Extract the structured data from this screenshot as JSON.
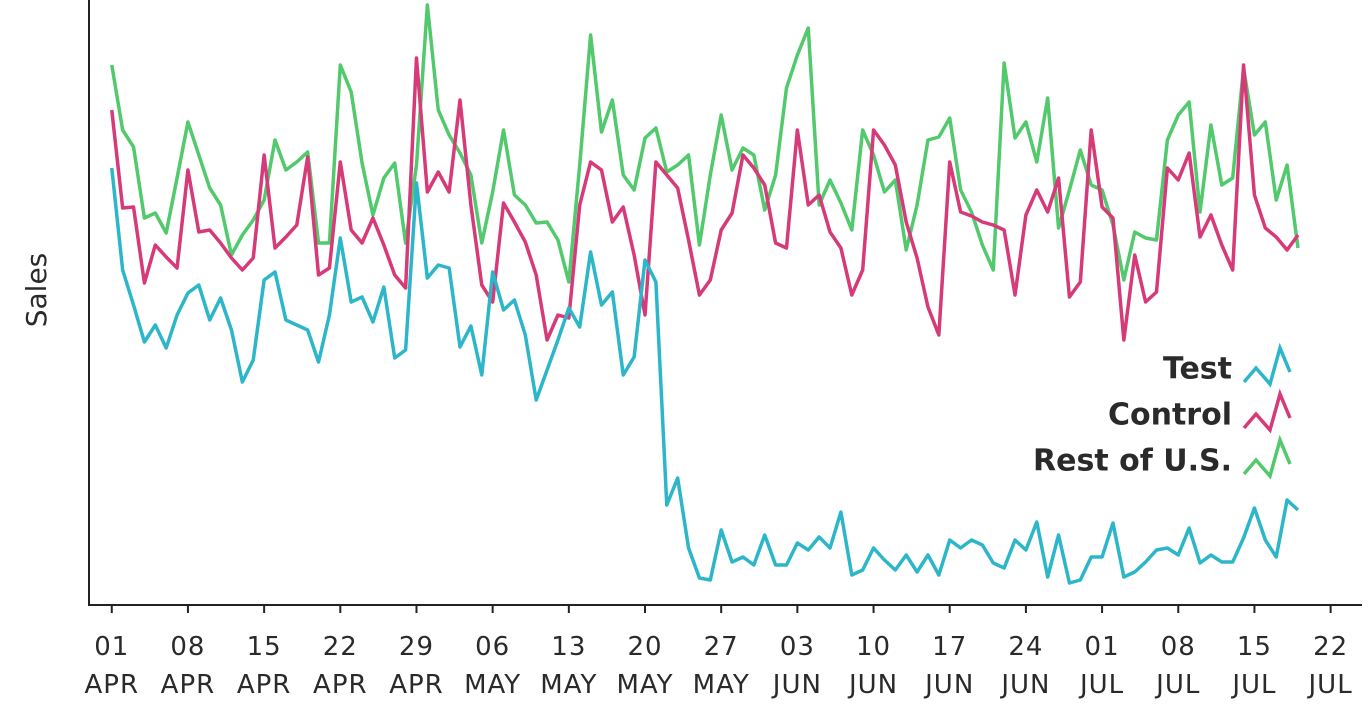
{
  "chart_data": {
    "type": "line",
    "ylabel": "Sales",
    "legend_position": "center right",
    "x": [
      0,
      1,
      2,
      3,
      4,
      5,
      6,
      7,
      8,
      9,
      10,
      11,
      12,
      13,
      14,
      15,
      16,
      17,
      18,
      19,
      20,
      21,
      22,
      23,
      24,
      25,
      26,
      27,
      28,
      29,
      30,
      31,
      32,
      33,
      34,
      35,
      36,
      37,
      38,
      39,
      40,
      41,
      42,
      43,
      44,
      45,
      46,
      47,
      48,
      49,
      50,
      51,
      52,
      53,
      54,
      55,
      56,
      57,
      58,
      59,
      60,
      61,
      62,
      63,
      64,
      65,
      66,
      67,
      68,
      69,
      70,
      71,
      72,
      73,
      74,
      75,
      76,
      77,
      78,
      79,
      80,
      81,
      82,
      83,
      84,
      85,
      86,
      87,
      88,
      89,
      90,
      91,
      92,
      93,
      94,
      95,
      96,
      97,
      98,
      99,
      100,
      101,
      102,
      103,
      104,
      105,
      106,
      107,
      108,
      109
    ],
    "xlim": [
      -2,
      114.7
    ],
    "xticks": [
      {
        "value": 0,
        "label": "01\nAPR"
      },
      {
        "value": 7,
        "label": "08\nAPR"
      },
      {
        "value": 14,
        "label": "15\nAPR"
      },
      {
        "value": 21,
        "label": "22\nAPR"
      },
      {
        "value": 28,
        "label": "29\nAPR"
      },
      {
        "value": 35,
        "label": "06\nMAY"
      },
      {
        "value": 42,
        "label": "13\nMAY"
      },
      {
        "value": 49,
        "label": "20\nMAY"
      },
      {
        "value": 56,
        "label": "27\nMAY"
      },
      {
        "value": 63,
        "label": "03\nJUN"
      },
      {
        "value": 70,
        "label": "10\nJUN"
      },
      {
        "value": 77,
        "label": "17\nJUN"
      },
      {
        "value": 84,
        "label": "24\nJUN"
      },
      {
        "value": 91,
        "label": "01\nJUL"
      },
      {
        "value": 98,
        "label": "08\nJUL"
      },
      {
        "value": 105,
        "label": "15\nJUL"
      },
      {
        "value": 112,
        "label": "22\nJUL"
      }
    ],
    "ylim": [
      0,
      600
    ],
    "series": [
      {
        "name": "Test",
        "color": "#2db6c9",
        "values": [
          437,
          335,
          300,
          263,
          280,
          257,
          290,
          312,
          320,
          285,
          307,
          275,
          223,
          245,
          325,
          333,
          285,
          280,
          275,
          243,
          290,
          367,
          303,
          308,
          283,
          318,
          247,
          255,
          422,
          327,
          340,
          337,
          258,
          279,
          230,
          333,
          295,
          305,
          270,
          205,
          235,
          265,
          297,
          278,
          353,
          300,
          313,
          230,
          248,
          345,
          323,
          100,
          127,
          57,
          27,
          25,
          75,
          43,
          48,
          40,
          70,
          40,
          40,
          62,
          55,
          68,
          57,
          93,
          30,
          35,
          57,
          45,
          35,
          50,
          33,
          50,
          30,
          65,
          57,
          65,
          60,
          42,
          37,
          65,
          55,
          83,
          28,
          70,
          22,
          25,
          48,
          48,
          82,
          28,
          33,
          43,
          55,
          57,
          50,
          77,
          42,
          50,
          43,
          43,
          67,
          97,
          65,
          48,
          105,
          95
        ]
      },
      {
        "name": "Control",
        "color": "#d63a78",
        "values": [
          495,
          397,
          398,
          322,
          360,
          348,
          337,
          435,
          373,
          375,
          362,
          347,
          335,
          347,
          450,
          357,
          368,
          380,
          448,
          330,
          337,
          443,
          375,
          362,
          387,
          360,
          330,
          317,
          547,
          413,
          433,
          413,
          505,
          400,
          320,
          303,
          402,
          383,
          363,
          330,
          265,
          290,
          287,
          400,
          443,
          435,
          383,
          398,
          350,
          290,
          443,
          430,
          417,
          365,
          310,
          325,
          375,
          392,
          450,
          437,
          420,
          362,
          357,
          475,
          400,
          410,
          373,
          357,
          310,
          335,
          475,
          460,
          440,
          383,
          347,
          298,
          270,
          443,
          393,
          389,
          383,
          380,
          375,
          310,
          390,
          415,
          393,
          427,
          308,
          323,
          475,
          398,
          387,
          265,
          350,
          303,
          313,
          437,
          425,
          452,
          368,
          390,
          360,
          335,
          540,
          410,
          377,
          368,
          355,
          370
        ]
      },
      {
        "name": "Rest of U.S.",
        "color": "#52c96c",
        "values": [
          540,
          475,
          458,
          387,
          392,
          372,
          427,
          483,
          450,
          417,
          400,
          350,
          370,
          385,
          405,
          465,
          435,
          443,
          453,
          362,
          362,
          540,
          513,
          442,
          390,
          427,
          442,
          362,
          440,
          600,
          495,
          470,
          452,
          430,
          362,
          413,
          475,
          410,
          400,
          382,
          383,
          365,
          323,
          440,
          570,
          473,
          505,
          430,
          415,
          467,
          477,
          433,
          440,
          450,
          360,
          430,
          490,
          435,
          457,
          450,
          395,
          430,
          517,
          550,
          577,
          400,
          425,
          402,
          375,
          475,
          450,
          413,
          425,
          355,
          400,
          465,
          468,
          487,
          415,
          393,
          360,
          335,
          542,
          467,
          483,
          443,
          507,
          377,
          415,
          455,
          420,
          415,
          380,
          325,
          373,
          367,
          365,
          465,
          490,
          503,
          393,
          480,
          420,
          427,
          537,
          470,
          483,
          405,
          440,
          357
        ]
      }
    ]
  }
}
